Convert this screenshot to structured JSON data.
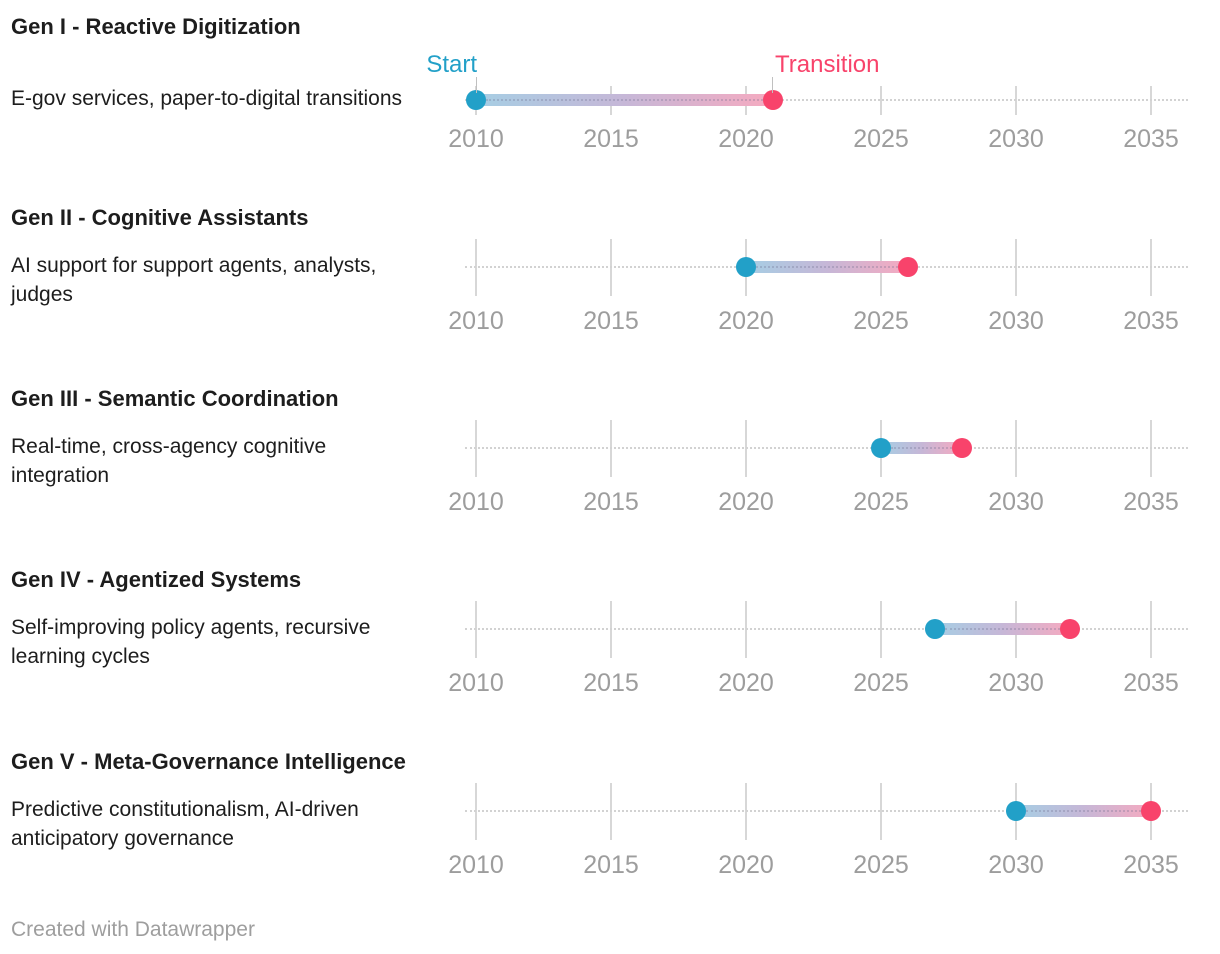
{
  "chart_data": {
    "type": "dumbbell-range",
    "legend": {
      "start_label": "Start",
      "end_label": "Transition"
    },
    "axis": {
      "tick_labels": [
        "2010",
        "2015",
        "2020",
        "2025",
        "2030",
        "2035"
      ],
      "tick_years": [
        2010,
        2015,
        2020,
        2025,
        2030,
        2035
      ],
      "xlim": [
        2009.6,
        2036.4
      ],
      "grid": true
    },
    "colors": {
      "start_dot": "#22a0c8",
      "end_dot": "#f8436b",
      "bar_gradient_start": "#a6cee4",
      "bar_gradient_end": "#f6aac0",
      "axis_text": "#9d9d9d",
      "gridline": "#d7d7d7",
      "baseline_dots": "#d2d2d2",
      "text": "#1d1d1d"
    },
    "rows": [
      {
        "title": "Gen I - Reactive Digitization",
        "label_lines": [
          "E-gov services, paper-to-digital transitions"
        ],
        "start": 2010,
        "end": 2021
      },
      {
        "title": "Gen II - Cognitive Assistants",
        "label_lines": [
          "AI support for support agents, analysts,",
          "judges"
        ],
        "start": 2020,
        "end": 2026
      },
      {
        "title": "Gen III - Semantic Coordination",
        "label_lines": [
          "Real-time, cross-agency cognitive",
          "integration"
        ],
        "start": 2025,
        "end": 2028
      },
      {
        "title": "Gen IV - Agentized Systems",
        "label_lines": [
          "Self-improving policy agents, recursive",
          "learning cycles"
        ],
        "start": 2027,
        "end": 2032
      },
      {
        "title": "Gen V - Meta-Governance Intelligence",
        "label_lines": [
          "Predictive constitutionalism, AI-driven",
          "anticipatory governance"
        ],
        "start": 2030,
        "end": 2035
      }
    ]
  },
  "footer": {
    "credit": "Created with Datawrapper"
  }
}
